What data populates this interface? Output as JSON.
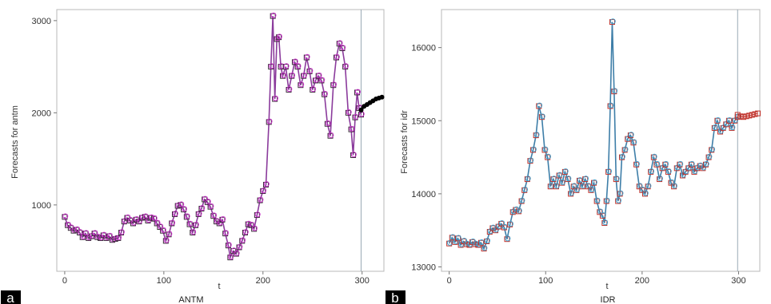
{
  "chart_data": [
    {
      "panel_label": "a",
      "caption": "ANTM",
      "type": "line",
      "xlabel": "t",
      "ylabel": "Forecasts for antm",
      "xlim": [
        -8,
        322
      ],
      "ylim": [
        280,
        3120
      ],
      "xticks": [
        "0",
        "100",
        "200",
        "300"
      ],
      "yticks": [
        "1000",
        "2000",
        "3000"
      ],
      "forecast_start": 299,
      "colors": {
        "fitted_line": "#8b3b9c",
        "actual_marker": "#3a2a3a",
        "fitted_marker": "#cc33cc",
        "forecast": "#000000",
        "divider": "#9aaab5"
      },
      "series": [
        {
          "values": [
            [
              0,
              870
            ],
            [
              3,
              780
            ],
            [
              6,
              750
            ],
            [
              9,
              720
            ],
            [
              12,
              730
            ],
            [
              15,
              700
            ],
            [
              18,
              650
            ],
            [
              21,
              690
            ],
            [
              24,
              640
            ],
            [
              27,
              660
            ],
            [
              30,
              690
            ],
            [
              33,
              650
            ],
            [
              36,
              640
            ],
            [
              39,
              670
            ],
            [
              42,
              640
            ],
            [
              45,
              660
            ],
            [
              48,
              620
            ],
            [
              51,
              630
            ],
            [
              54,
              640
            ],
            [
              57,
              700
            ],
            [
              60,
              820
            ],
            [
              63,
              860
            ],
            [
              66,
              830
            ],
            [
              69,
              800
            ],
            [
              72,
              840
            ],
            [
              75,
              820
            ],
            [
              78,
              860
            ],
            [
              81,
              870
            ],
            [
              84,
              830
            ],
            [
              87,
              860
            ],
            [
              90,
              850
            ],
            [
              93,
              800
            ],
            [
              96,
              760
            ],
            [
              99,
              720
            ],
            [
              102,
              610
            ],
            [
              105,
              680
            ],
            [
              108,
              800
            ],
            [
              111,
              900
            ],
            [
              114,
              990
            ],
            [
              117,
              1000
            ],
            [
              120,
              950
            ],
            [
              123,
              870
            ],
            [
              126,
              790
            ],
            [
              129,
              700
            ],
            [
              132,
              780
            ],
            [
              135,
              900
            ],
            [
              138,
              960
            ],
            [
              141,
              1060
            ],
            [
              144,
              1030
            ],
            [
              147,
              980
            ],
            [
              150,
              880
            ],
            [
              153,
              820
            ],
            [
              156,
              800
            ],
            [
              159,
              840
            ],
            [
              162,
              690
            ],
            [
              165,
              560
            ],
            [
              167,
              430
            ],
            [
              170,
              500
            ],
            [
              173,
              470
            ],
            [
              176,
              540
            ],
            [
              179,
              610
            ],
            [
              182,
              700
            ],
            [
              185,
              790
            ],
            [
              188,
              780
            ],
            [
              191,
              740
            ],
            [
              194,
              890
            ],
            [
              197,
              1050
            ],
            [
              200,
              1150
            ],
            [
              203,
              1220
            ],
            [
              206,
              1900
            ],
            [
              208,
              2500
            ],
            [
              210,
              3050
            ],
            [
              212,
              2150
            ],
            [
              214,
              2800
            ],
            [
              216,
              2820
            ],
            [
              218,
              2500
            ],
            [
              220,
              2400
            ],
            [
              223,
              2500
            ],
            [
              226,
              2250
            ],
            [
              229,
              2400
            ],
            [
              232,
              2550
            ],
            [
              235,
              2500
            ],
            [
              238,
              2300
            ],
            [
              241,
              2400
            ],
            [
              244,
              2600
            ],
            [
              247,
              2450
            ],
            [
              250,
              2250
            ],
            [
              253,
              2350
            ],
            [
              256,
              2400
            ],
            [
              259,
              2350
            ],
            [
              262,
              2200
            ],
            [
              265,
              1880
            ],
            [
              268,
              1750
            ],
            [
              271,
              2300
            ],
            [
              274,
              2600
            ],
            [
              277,
              2750
            ],
            [
              280,
              2700
            ],
            [
              283,
              2500
            ],
            [
              286,
              2000
            ],
            [
              289,
              1820
            ],
            [
              291,
              1540
            ],
            [
              293,
              1950
            ],
            [
              295,
              2220
            ],
            [
              297,
              2050
            ],
            [
              299,
              1980
            ]
          ]
        },
        {
          "values": [
            [
              299,
              2030
            ],
            [
              302,
              2070
            ],
            [
              305,
              2090
            ],
            [
              308,
              2110
            ],
            [
              311,
              2130
            ],
            [
              314,
              2150
            ],
            [
              317,
              2160
            ],
            [
              320,
              2170
            ]
          ]
        }
      ]
    },
    {
      "panel_label": "b",
      "caption": "IDR",
      "type": "line",
      "xlabel": "t",
      "ylabel": "Forecasts for idr",
      "xlim": [
        -8,
        322
      ],
      "ylim": [
        12940,
        16520
      ],
      "xticks": [
        "0",
        "100",
        "200",
        "300"
      ],
      "yticks": [
        "13000",
        "14000",
        "15000",
        "16000"
      ],
      "forecast_start": 299,
      "colors": {
        "fitted_line": "#3e7ea8",
        "fitted_marker": "#3fa0cc",
        "actual_marker": "#c0312a",
        "forecast": "#c0312a",
        "divider": "#9aaab5"
      },
      "series": [
        {
          "values": [
            [
              0,
              13320
            ],
            [
              3,
              13400
            ],
            [
              6,
              13340
            ],
            [
              9,
              13390
            ],
            [
              12,
              13300
            ],
            [
              15,
              13350
            ],
            [
              18,
              13310
            ],
            [
              21,
              13300
            ],
            [
              24,
              13340
            ],
            [
              27,
              13310
            ],
            [
              30,
              13300
            ],
            [
              33,
              13330
            ],
            [
              36,
              13250
            ],
            [
              39,
              13350
            ],
            [
              42,
              13480
            ],
            [
              45,
              13530
            ],
            [
              48,
              13500
            ],
            [
              51,
              13550
            ],
            [
              54,
              13590
            ],
            [
              57,
              13540
            ],
            [
              60,
              13380
            ],
            [
              63,
              13580
            ],
            [
              66,
              13750
            ],
            [
              69,
              13780
            ],
            [
              72,
              13760
            ],
            [
              75,
              13900
            ],
            [
              78,
              14050
            ],
            [
              81,
              14200
            ],
            [
              84,
              14450
            ],
            [
              87,
              14600
            ],
            [
              90,
              14800
            ],
            [
              93,
              15200
            ],
            [
              96,
              15050
            ],
            [
              99,
              14600
            ],
            [
              102,
              14500
            ],
            [
              105,
              14100
            ],
            [
              108,
              14200
            ],
            [
              111,
              14100
            ],
            [
              114,
              14250
            ],
            [
              117,
              14150
            ],
            [
              120,
              14300
            ],
            [
              123,
              14200
            ],
            [
              126,
              14000
            ],
            [
              129,
              14100
            ],
            [
              132,
              14050
            ],
            [
              135,
              14180
            ],
            [
              138,
              14100
            ],
            [
              141,
              14200
            ],
            [
              144,
              14100
            ],
            [
              147,
              14050
            ],
            [
              150,
              14150
            ],
            [
              153,
              13900
            ],
            [
              156,
              13750
            ],
            [
              159,
              13700
            ],
            [
              161,
              13600
            ],
            [
              163,
              13900
            ],
            [
              165,
              14300
            ],
            [
              167,
              15200
            ],
            [
              169,
              16350
            ],
            [
              171,
              15400
            ],
            [
              173,
              14200
            ],
            [
              175,
              13900
            ],
            [
              177,
              14000
            ],
            [
              179,
              14500
            ],
            [
              182,
              14600
            ],
            [
              185,
              14750
            ],
            [
              188,
              14800
            ],
            [
              191,
              14700
            ],
            [
              194,
              14400
            ],
            [
              197,
              14100
            ],
            [
              200,
              14050
            ],
            [
              203,
              14000
            ],
            [
              206,
              14100
            ],
            [
              209,
              14300
            ],
            [
              212,
              14500
            ],
            [
              215,
              14400
            ],
            [
              218,
              14200
            ],
            [
              221,
              14350
            ],
            [
              224,
              14400
            ],
            [
              227,
              14300
            ],
            [
              230,
              14150
            ],
            [
              233,
              14100
            ],
            [
              236,
              14350
            ],
            [
              239,
              14400
            ],
            [
              242,
              14250
            ],
            [
              245,
              14300
            ],
            [
              248,
              14350
            ],
            [
              251,
              14400
            ],
            [
              254,
              14300
            ],
            [
              257,
              14350
            ],
            [
              260,
              14380
            ],
            [
              263,
              14350
            ],
            [
              266,
              14400
            ],
            [
              269,
              14500
            ],
            [
              272,
              14600
            ],
            [
              275,
              14900
            ],
            [
              278,
              15000
            ],
            [
              281,
              14850
            ],
            [
              284,
              14900
            ],
            [
              287,
              14950
            ],
            [
              290,
              15000
            ],
            [
              293,
              14900
            ],
            [
              296,
              15000
            ],
            [
              299,
              15050
            ]
          ]
        },
        {
          "values": [
            [
              299,
              15080
            ],
            [
              302,
              15060
            ],
            [
              305,
              15050
            ],
            [
              308,
              15060
            ],
            [
              311,
              15070
            ],
            [
              314,
              15080
            ],
            [
              317,
              15090
            ],
            [
              320,
              15100
            ]
          ]
        }
      ]
    }
  ]
}
